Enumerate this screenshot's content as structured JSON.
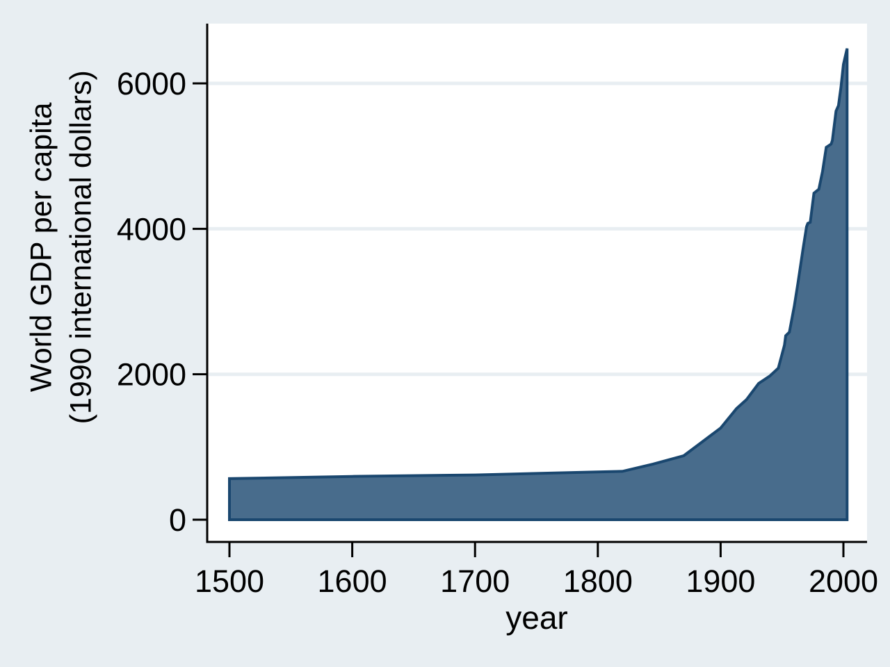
{
  "chart_data": {
    "type": "area",
    "title": "",
    "xlabel": "year",
    "ylabel_line1": "World GDP per capita",
    "ylabel_line2": "(1990 international dollars)",
    "x_ticks": [
      1500,
      1600,
      1700,
      1800,
      1900,
      2000
    ],
    "y_ticks": [
      0,
      2000,
      4000,
      6000
    ],
    "xlim": [
      1500,
      2003
    ],
    "ylim": [
      0,
      6820
    ],
    "grid": "horizontal-light",
    "legend": "none",
    "series": [
      {
        "name": "World GDP per capita (1990 international dollars)",
        "points": [
          [
            1500,
            565
          ],
          [
            1600,
            595
          ],
          [
            1700,
            615
          ],
          [
            1820,
            665
          ],
          [
            1845,
            765
          ],
          [
            1870,
            880
          ],
          [
            1900,
            1260
          ],
          [
            1913,
            1530
          ],
          [
            1921,
            1650
          ],
          [
            1931,
            1875
          ],
          [
            1940,
            1975
          ],
          [
            1947,
            2085
          ],
          [
            1952,
            2400
          ],
          [
            1953,
            2530
          ],
          [
            1956,
            2580
          ],
          [
            1960,
            2940
          ],
          [
            1963,
            3260
          ],
          [
            1967,
            3710
          ],
          [
            1970,
            4030
          ],
          [
            1971,
            4075
          ],
          [
            1973,
            4090
          ],
          [
            1976,
            4490
          ],
          [
            1980,
            4545
          ],
          [
            1983,
            4790
          ],
          [
            1986,
            5120
          ],
          [
            1990,
            5165
          ],
          [
            1991,
            5215
          ],
          [
            1994,
            5620
          ],
          [
            1996,
            5695
          ],
          [
            1998,
            5950
          ],
          [
            2000,
            6260
          ],
          [
            2003,
            6480
          ]
        ]
      }
    ],
    "colors": {
      "background": "#e8eef2",
      "plot_background": "#ffffff",
      "grid": "#e8eef2",
      "axis": "#000000",
      "text": "#000000",
      "area_fill": "#486c8c",
      "area_line": "#1a476f"
    }
  }
}
